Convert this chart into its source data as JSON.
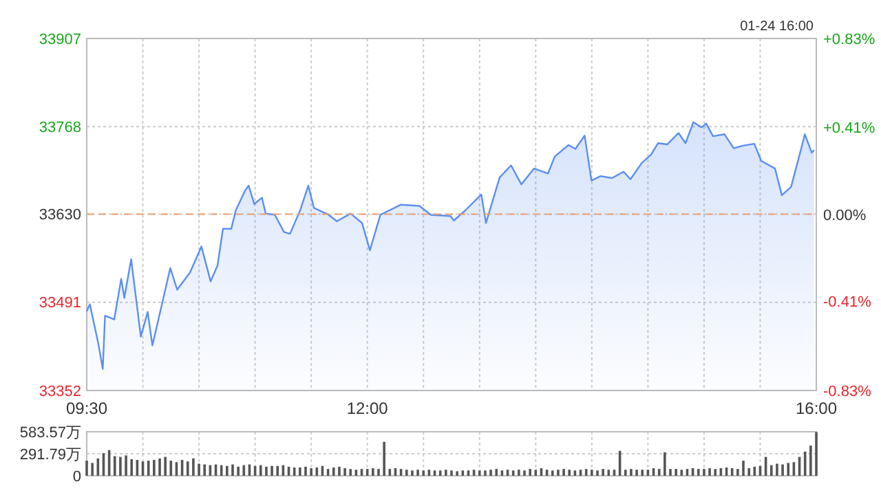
{
  "chart_data": [
    {
      "type": "area",
      "annotations": [
        "01-24 16:00"
      ],
      "x": [
        9.5,
        9.528,
        9.602,
        9.643,
        9.663,
        9.745,
        9.807,
        9.835,
        9.896,
        9.982,
        10.043,
        10.085,
        10.187,
        10.244,
        10.306,
        10.42,
        10.522,
        10.604,
        10.665,
        10.714,
        10.788,
        10.828,
        10.91,
        10.943,
        10.993,
        11.061,
        11.094,
        11.176,
        11.257,
        11.311,
        11.401,
        11.474,
        11.524,
        11.646,
        11.728,
        11.851,
        11.953,
        12.023,
        12.116,
        12.3,
        12.464,
        12.566,
        12.741,
        12.771,
        12.873,
        13.016,
        13.057,
        13.179,
        13.281,
        13.372,
        13.486,
        13.609,
        13.67,
        13.792,
        13.854,
        13.936,
        13.997,
        14.078,
        14.181,
        14.283,
        14.344,
        14.446,
        14.528,
        14.59,
        14.672,
        14.773,
        14.835,
        14.905,
        14.978,
        15.019,
        15.08,
        15.182,
        15.264,
        15.346,
        15.448,
        15.509,
        15.632,
        15.693,
        15.775,
        15.856,
        15.898,
        15.959,
        15.98
      ],
      "series": [
        {
          "color": "#5b8ff0",
          "values": [
            33477,
            33488,
            33427,
            33386,
            33470,
            33464,
            33528,
            33498,
            33559,
            33437,
            33476,
            33423,
            33501,
            33545,
            33511,
            33538,
            33579,
            33524,
            33549,
            33607,
            33607,
            33636,
            33667,
            33675,
            33646,
            33656,
            33631,
            33629,
            33602,
            33599,
            33636,
            33675,
            33640,
            33630,
            33619,
            33631,
            33616,
            33573,
            33629,
            33645,
            33643,
            33629,
            33627,
            33620,
            33636,
            33661,
            33616,
            33688,
            33707,
            33677,
            33702,
            33694,
            33721,
            33739,
            33733,
            33754,
            33683,
            33690,
            33687,
            33697,
            33685,
            33711,
            33724,
            33742,
            33740,
            33758,
            33742,
            33775,
            33767,
            33773,
            33753,
            33756,
            33734,
            33738,
            33741,
            33714,
            33702,
            33660,
            33673,
            33727,
            33756,
            33727,
            33731
          ]
        }
      ],
      "xlim": [
        9.5,
        16
      ],
      "xticks": [
        {
          "value": 9.5,
          "label": "09:30"
        },
        {
          "value": 10,
          "label": null
        },
        {
          "value": 10.5,
          "label": null
        },
        {
          "value": 11,
          "label": null
        },
        {
          "value": 11.5,
          "label": null
        },
        {
          "value": 12,
          "label": "12:00"
        },
        {
          "value": 12.5,
          "label": null
        },
        {
          "value": 13,
          "label": null
        },
        {
          "value": 13.5,
          "label": null
        },
        {
          "value": 14,
          "label": null
        },
        {
          "value": 14.5,
          "label": null
        },
        {
          "value": 15,
          "label": null
        },
        {
          "value": 15.5,
          "label": null
        },
        {
          "value": 16,
          "label": "16:00"
        }
      ],
      "ylim": [
        33352,
        33907
      ],
      "yticks": [
        33352,
        33491,
        33630,
        33768,
        33907
      ],
      "y2lim": [
        -0.83,
        0.83
      ],
      "y2ticks": [
        {
          "value": -0.83,
          "label": "-0.83%"
        },
        {
          "value": -0.41,
          "label": "-0.41%"
        },
        {
          "value": 0,
          "label": "0.00%"
        },
        {
          "value": 0.41,
          "label": "+0.41%"
        },
        {
          "value": 0.83,
          "label": "+0.83%"
        }
      ],
      "ref_lines": [
        {
          "axis": "y",
          "value": 33630,
          "color": "#f0a070",
          "line_style": "dashed"
        }
      ],
      "grid": true
    },
    {
      "type": "bar",
      "x": [
        9.5,
        9.55,
        9.6,
        9.65,
        9.7,
        9.75,
        9.8,
        9.85,
        9.9,
        9.95,
        10,
        10.05,
        10.1,
        10.15,
        10.2,
        10.25,
        10.3,
        10.35,
        10.4,
        10.45,
        10.5,
        10.55,
        10.6,
        10.65,
        10.7,
        10.75,
        10.8,
        10.85,
        10.9,
        10.95,
        11,
        11.05,
        11.1,
        11.15,
        11.2,
        11.25,
        11.3,
        11.35,
        11.4,
        11.45,
        11.5,
        11.55,
        11.6,
        11.65,
        11.7,
        11.75,
        11.8,
        11.85,
        11.9,
        11.95,
        12,
        12.05,
        12.1,
        12.15,
        12.2,
        12.25,
        12.3,
        12.35,
        12.4,
        12.45,
        12.5,
        12.55,
        12.6,
        12.65,
        12.7,
        12.75,
        12.8,
        12.85,
        12.9,
        12.95,
        13,
        13.05,
        13.1,
        13.15,
        13.2,
        13.25,
        13.3,
        13.35,
        13.4,
        13.45,
        13.5,
        13.55,
        13.6,
        13.65,
        13.7,
        13.75,
        13.8,
        13.85,
        13.9,
        13.95,
        14,
        14.05,
        14.1,
        14.15,
        14.2,
        14.25,
        14.3,
        14.35,
        14.4,
        14.45,
        14.5,
        14.55,
        14.6,
        14.65,
        14.7,
        14.75,
        14.8,
        14.85,
        14.9,
        14.95,
        15,
        15.05,
        15.1,
        15.15,
        15.2,
        15.25,
        15.3,
        15.35,
        15.4,
        15.45,
        15.5,
        15.55,
        15.6,
        15.65,
        15.7,
        15.75,
        15.8,
        15.85,
        15.9,
        15.95,
        16
      ],
      "series": [
        {
          "color": "#555555",
          "values": [
            200,
            170,
            230,
            300,
            340,
            260,
            250,
            270,
            220,
            210,
            190,
            200,
            210,
            230,
            250,
            200,
            180,
            210,
            190,
            230,
            160,
            150,
            140,
            150,
            140,
            130,
            150,
            120,
            140,
            150,
            130,
            140,
            120,
            130,
            130,
            140,
            120,
            110,
            110,
            120,
            100,
            110,
            130,
            90,
            110,
            120,
            100,
            90,
            80,
            90,
            90,
            100,
            90,
            450,
            90,
            100,
            90,
            80,
            70,
            80,
            70,
            80,
            70,
            70,
            80,
            70,
            60,
            70,
            70,
            80,
            70,
            70,
            80,
            90,
            70,
            80,
            70,
            80,
            70,
            90,
            80,
            100,
            80,
            70,
            80,
            90,
            80,
            70,
            80,
            90,
            80,
            70,
            90,
            80,
            80,
            330,
            80,
            90,
            80,
            80,
            80,
            100,
            90,
            310,
            90,
            90,
            80,
            90,
            100,
            90,
            90,
            100,
            90,
            100,
            110,
            100,
            90,
            200,
            100,
            120,
            130,
            250,
            140,
            160,
            150,
            170,
            180,
            250,
            320,
            400,
            580
          ]
        }
      ],
      "xlim": [
        9.5,
        16
      ],
      "xticks": [
        9.5,
        10,
        10.5,
        11,
        11.5,
        12,
        12.5,
        13,
        13.5,
        14,
        14.5,
        15,
        15.5,
        16
      ],
      "ylim": [
        0,
        583.57
      ],
      "yticks": [
        {
          "value": 0,
          "label": "0"
        },
        {
          "value": 291.79,
          "label": "291.79万"
        },
        {
          "value": 583.57,
          "label": "583.57万"
        }
      ],
      "tick_labels": "y",
      "grid": true
    }
  ]
}
